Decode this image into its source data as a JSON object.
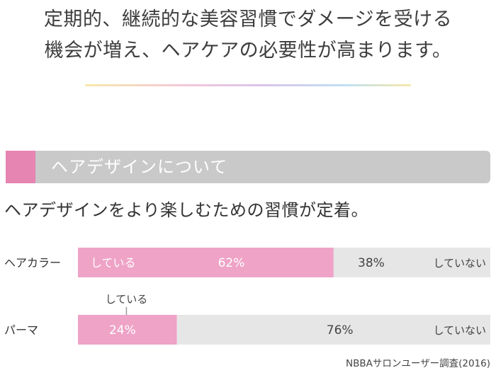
{
  "headline": {
    "line1": "定期的、継続的な美容習慣でダメージを受ける",
    "line2": "機会が増え、ヘアケアの必要性が高まります。"
  },
  "section": {
    "title": "ヘアデザインについて"
  },
  "subtitle": "ヘアデザインをより楽しむための習慣が定着。",
  "source": "NBBAサロンユーザー調査(2016)",
  "colors": {
    "accent": "#e684b2",
    "bar_doing": "#eea3c7",
    "bar_not": "#e6e6e6",
    "section_bar": "#c9c9c9"
  },
  "chart_data": {
    "type": "bar",
    "orientation": "horizontal",
    "stacked": true,
    "categories": [
      "ヘアカラー",
      "パーマ"
    ],
    "series": [
      {
        "name": "している",
        "values": [
          62,
          24
        ],
        "labels": [
          "62%",
          "24%"
        ],
        "color": "#eea3c7"
      },
      {
        "name": "していない",
        "values": [
          38,
          76
        ],
        "labels": [
          "38%",
          "76%"
        ],
        "color": "#e6e6e6"
      }
    ],
    "xlim": [
      0,
      100
    ],
    "callout": "している"
  }
}
